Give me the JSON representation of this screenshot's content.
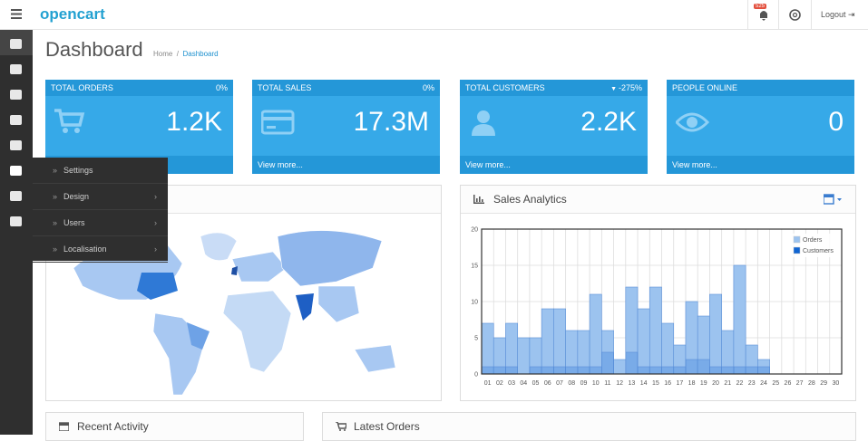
{
  "header": {
    "logo": "opencart",
    "notification_count": "525",
    "logout": "Logout"
  },
  "menu": {
    "items": [
      "Settings",
      "Design",
      "Users",
      "Localisation"
    ]
  },
  "page": {
    "title": "Dashboard",
    "breadcrumb": [
      "Home",
      "Dashboard"
    ]
  },
  "tiles": [
    {
      "title": "TOTAL ORDERS",
      "change": "0%",
      "value": "1.2K"
    },
    {
      "title": "TOTAL SALES",
      "change": "0%",
      "value": "17.3M",
      "link": "View more..."
    },
    {
      "title": "TOTAL CUSTOMERS",
      "change": "-275%",
      "value": "2.2K",
      "link": "View more..."
    },
    {
      "title": "PEOPLE ONLINE",
      "value": "0",
      "link": "View more..."
    }
  ],
  "panels": {
    "recent_activity": "Recent Activity",
    "latest_orders": "Latest Orders"
  },
  "chart_data": {
    "type": "bar",
    "title": "Sales Analytics",
    "categories": [
      "01",
      "02",
      "03",
      "04",
      "05",
      "06",
      "07",
      "08",
      "09",
      "10",
      "11",
      "12",
      "13",
      "14",
      "15",
      "16",
      "17",
      "18",
      "19",
      "20",
      "21",
      "22",
      "23",
      "24",
      "25",
      "26",
      "27",
      "28",
      "29",
      "30"
    ],
    "series": [
      {
        "name": "Orders",
        "color": "#9cc3ef",
        "values": [
          7,
          5,
          7,
          5,
          5,
          9,
          9,
          6,
          6,
          11,
          6,
          2,
          12,
          9,
          12,
          7,
          4,
          10,
          8,
          11,
          6,
          15,
          4,
          2,
          0,
          0,
          0,
          0,
          0,
          0
        ]
      },
      {
        "name": "Customers",
        "color": "#1065d2",
        "values": [
          1,
          1,
          1,
          0,
          1,
          1,
          1,
          1,
          1,
          1,
          3,
          0,
          3,
          1,
          1,
          1,
          1,
          2,
          2,
          1,
          1,
          1,
          1,
          1,
          0,
          0,
          0,
          0,
          0,
          0
        ]
      }
    ],
    "ylim": [
      0,
      20
    ],
    "yticks": [
      0,
      5,
      10,
      15,
      20
    ],
    "grid": true,
    "legend": "top-right"
  }
}
